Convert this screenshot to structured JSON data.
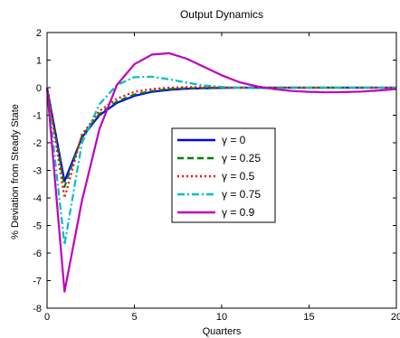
{
  "chart_data": {
    "type": "line",
    "title": "Output Dynamics",
    "xlabel": "Quarters",
    "ylabel": "% Deviation from Steady State",
    "xlim": [
      0,
      20
    ],
    "ylim": [
      -8,
      2
    ],
    "xticks": [
      0,
      5,
      10,
      15,
      20
    ],
    "yticks": [
      2,
      1,
      0,
      -1,
      -2,
      -3,
      -4,
      -5,
      -6,
      -7,
      -8
    ],
    "grid": false,
    "legend_position": "center",
    "x": [
      0,
      1,
      2,
      3,
      4,
      5,
      6,
      7,
      8,
      9,
      10,
      11,
      12,
      13,
      14,
      15,
      16,
      17,
      18,
      19,
      20
    ],
    "series": [
      {
        "name": "γ = 0",
        "color": "#0000ff",
        "style": "solid",
        "values": [
          0,
          -3.4,
          -1.8,
          -1.0,
          -0.55,
          -0.3,
          -0.15,
          -0.08,
          -0.04,
          -0.02,
          -0.01,
          0,
          0,
          0,
          0,
          0,
          0,
          0,
          0,
          0,
          0
        ]
      },
      {
        "name": "γ = 0.25",
        "color": "#007f00",
        "style": "dashed",
        "values": [
          0,
          -3.6,
          -1.75,
          -0.95,
          -0.5,
          -0.25,
          -0.12,
          -0.05,
          -0.02,
          -0.01,
          0,
          0,
          0,
          0,
          0,
          0,
          0,
          0,
          0,
          0,
          0
        ]
      },
      {
        "name": "γ = 0.5",
        "color": "#ff0000",
        "style": "dotted",
        "values": [
          0,
          -4.0,
          -1.7,
          -0.85,
          -0.4,
          -0.15,
          -0.05,
          0.0,
          0.02,
          0.02,
          0.01,
          0,
          0,
          0,
          0,
          0,
          0,
          0,
          0,
          0,
          0
        ]
      },
      {
        "name": "γ = 0.75",
        "color": "#00bfbf",
        "style": "dashdot",
        "values": [
          0,
          -5.7,
          -2.0,
          -0.6,
          0.1,
          0.38,
          0.4,
          0.3,
          0.18,
          0.08,
          0.03,
          0,
          -0.02,
          -0.02,
          -0.01,
          0,
          0,
          0,
          0,
          0,
          0
        ]
      },
      {
        "name": "γ = 0.9",
        "color": "#bf00bf",
        "style": "solid",
        "values": [
          0,
          -7.4,
          -4.1,
          -1.5,
          0.1,
          0.85,
          1.2,
          1.25,
          1.05,
          0.75,
          0.45,
          0.2,
          0.05,
          -0.05,
          -0.12,
          -0.15,
          -0.17,
          -0.16,
          -0.14,
          -0.1,
          -0.05
        ]
      }
    ]
  }
}
